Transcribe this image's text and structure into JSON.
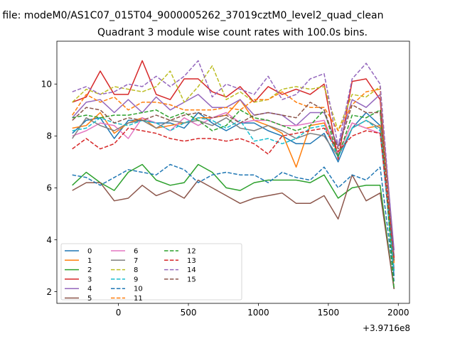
{
  "figure": {
    "suptitle": "n file: modeM0/AS1C07_015T04_9000005262_37019cztM0_level2_quad_clean",
    "offset_label": "+3.9716e8"
  },
  "chart_data": {
    "type": "line",
    "title": "Quadrant 3 module wise count rates with 100.0s bins.",
    "xlabel": "",
    "ylabel": "",
    "xlim": [
      -440,
      2080
    ],
    "ylim": [
      1.55,
      11.65
    ],
    "x_ticks": [
      0,
      500,
      1000,
      1500,
      2000
    ],
    "y_ticks": [
      2,
      4,
      6,
      8,
      10
    ],
    "grid": false,
    "legend_position": "lower-left",
    "legend_columns": 3,
    "x": [
      -330,
      -230,
      -130,
      -30,
      70,
      170,
      270,
      370,
      470,
      570,
      670,
      770,
      870,
      970,
      1070,
      1170,
      1270,
      1370,
      1470,
      1570,
      1670,
      1770,
      1870,
      1970
    ],
    "series": [
      {
        "name": "0",
        "color": "#1f77b4",
        "style": "solid",
        "values": [
          8.1,
          8.6,
          8.7,
          7.9,
          8.6,
          8.6,
          8.5,
          8.5,
          8.3,
          8.9,
          8.5,
          8.2,
          8.5,
          8.5,
          8.2,
          8.0,
          7.7,
          7.7,
          8.1,
          7.0,
          8.3,
          8.9,
          8.4,
          2.6
        ]
      },
      {
        "name": "1",
        "color": "#ff7f0e",
        "style": "solid",
        "values": [
          8.3,
          8.4,
          8.9,
          8.1,
          8.5,
          8.7,
          8.3,
          8.4,
          8.5,
          8.7,
          8.7,
          8.8,
          9.4,
          8.6,
          8.4,
          8.1,
          6.8,
          8.4,
          8.5,
          7.3,
          8.5,
          8.3,
          8.4,
          2.9
        ]
      },
      {
        "name": "2",
        "color": "#2ca02c",
        "style": "solid",
        "values": [
          6.1,
          6.6,
          6.2,
          5.9,
          6.6,
          6.9,
          6.3,
          6.1,
          6.2,
          6.9,
          6.6,
          6.0,
          5.9,
          6.2,
          6.3,
          6.3,
          6.3,
          6.2,
          6.5,
          5.6,
          6.0,
          6.1,
          6.1,
          2.1
        ]
      },
      {
        "name": "3",
        "color": "#d62728",
        "style": "solid",
        "values": [
          9.3,
          9.5,
          10.5,
          9.6,
          9.6,
          10.9,
          9.6,
          9.4,
          10.2,
          10.2,
          9.7,
          9.5,
          9.9,
          9.3,
          9.9,
          9.6,
          9.8,
          9.6,
          10.0,
          7.1,
          10.1,
          10.2,
          9.4,
          3.3
        ]
      },
      {
        "name": "4",
        "color": "#9467bd",
        "style": "solid",
        "values": [
          8.7,
          9.3,
          9.4,
          8.9,
          9.4,
          8.9,
          9.5,
          9.0,
          9.3,
          9.6,
          9.1,
          9.1,
          9.4,
          8.8,
          8.9,
          8.8,
          8.4,
          8.9,
          8.9,
          7.6,
          9.4,
          9.1,
          9.6,
          3.6
        ]
      },
      {
        "name": "5",
        "color": "#8c564b",
        "style": "solid",
        "values": [
          5.9,
          6.2,
          6.2,
          5.5,
          5.6,
          6.1,
          5.7,
          5.9,
          5.6,
          6.3,
          6.0,
          5.7,
          5.4,
          5.6,
          5.7,
          5.8,
          5.4,
          5.4,
          5.7,
          4.8,
          6.5,
          5.5,
          5.8,
          2.1
        ]
      },
      {
        "name": "6",
        "color": "#e377c2",
        "style": "solid",
        "values": [
          8.0,
          8.2,
          8.5,
          8.4,
          7.9,
          8.7,
          8.5,
          8.2,
          8.7,
          8.4,
          8.7,
          8.9,
          8.5,
          8.6,
          8.6,
          8.4,
          8.4,
          8.5,
          8.6,
          7.3,
          8.5,
          8.3,
          8.1,
          2.9
        ]
      },
      {
        "name": "7",
        "color": "#7f7f7f",
        "style": "solid",
        "values": [
          7.9,
          8.7,
          8.4,
          8.2,
          8.5,
          8.6,
          8.3,
          8.6,
          8.5,
          8.6,
          8.4,
          8.7,
          8.3,
          8.2,
          8.4,
          8.2,
          7.9,
          8.1,
          8.0,
          7.2,
          8.3,
          8.6,
          8.3,
          2.8
        ]
      },
      {
        "name": "8",
        "color": "#bcbd22",
        "style": "dashed",
        "values": [
          9.3,
          9.8,
          9.6,
          9.9,
          9.8,
          9.7,
          9.9,
          10.5,
          9.3,
          9.9,
          10.7,
          9.4,
          9.7,
          9.3,
          9.4,
          9.8,
          9.9,
          9.8,
          9.9,
          8.2,
          9.6,
          9.5,
          9.9,
          3.1
        ]
      },
      {
        "name": "9",
        "color": "#17becf",
        "style": "dashed",
        "values": [
          8.2,
          8.3,
          8.7,
          8.5,
          8.4,
          8.6,
          8.5,
          8.2,
          8.5,
          8.7,
          8.6,
          8.3,
          8.6,
          7.8,
          7.9,
          7.7,
          7.9,
          8.3,
          8.4,
          7.2,
          8.3,
          8.6,
          8.2,
          2.8
        ]
      },
      {
        "name": "10",
        "color": "#1f77b4",
        "style": "dashed",
        "values": [
          6.5,
          6.4,
          6.1,
          6.4,
          6.7,
          6.6,
          6.5,
          6.9,
          6.7,
          6.2,
          6.5,
          6.6,
          6.5,
          6.5,
          6.2,
          6.6,
          6.4,
          6.3,
          6.8,
          6.0,
          6.5,
          6.3,
          6.8,
          2.4
        ]
      },
      {
        "name": "11",
        "color": "#ff7f0e",
        "style": "dashed",
        "values": [
          8.8,
          9.6,
          9.3,
          9.5,
          9.0,
          9.3,
          9.3,
          9.2,
          9.0,
          9.0,
          9.0,
          9.1,
          9.0,
          9.4,
          9.4,
          9.7,
          9.3,
          9.1,
          9.1,
          8.2,
          9.2,
          9.7,
          9.8,
          3.1
        ]
      },
      {
        "name": "12",
        "color": "#2ca02c",
        "style": "dashed",
        "values": [
          8.7,
          8.8,
          8.7,
          8.8,
          8.8,
          8.9,
          9.0,
          8.7,
          8.9,
          8.6,
          8.2,
          8.4,
          9.0,
          8.7,
          8.6,
          8.4,
          8.2,
          8.4,
          9.0,
          7.2,
          8.8,
          8.7,
          9.0,
          2.1
        ]
      },
      {
        "name": "13",
        "color": "#d62728",
        "style": "dashed",
        "values": [
          7.5,
          7.9,
          7.5,
          7.7,
          8.3,
          8.2,
          8.1,
          7.9,
          7.8,
          7.9,
          7.9,
          7.8,
          7.9,
          7.7,
          7.3,
          8.0,
          8.1,
          8.2,
          8.3,
          7.4,
          8.0,
          8.2,
          8.1,
          3.3
        ]
      },
      {
        "name": "14",
        "color": "#9467bd",
        "style": "dashed",
        "values": [
          9.7,
          9.9,
          9.6,
          9.7,
          10.0,
          9.9,
          10.3,
          9.9,
          10.3,
          10.9,
          9.5,
          10.0,
          9.8,
          9.6,
          10.3,
          9.4,
          9.6,
          10.2,
          10.4,
          7.6,
          10.2,
          10.8,
          10.0,
          3.4
        ]
      },
      {
        "name": "15",
        "color": "#8c564b",
        "style": "dashed",
        "values": [
          8.6,
          9.1,
          9.0,
          8.5,
          8.7,
          8.6,
          8.8,
          8.6,
          8.8,
          8.9,
          8.7,
          8.8,
          8.5,
          8.8,
          8.9,
          8.8,
          8.7,
          9.3,
          9.0,
          7.5,
          9.2,
          8.9,
          8.9,
          3.2
        ]
      }
    ]
  }
}
